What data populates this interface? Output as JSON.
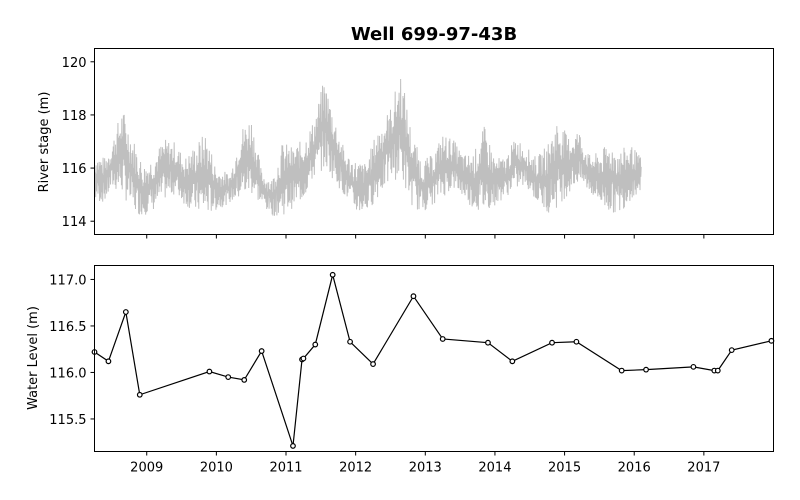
{
  "chart_data": [
    {
      "type": "line",
      "title": "Well 699-97-43B",
      "xlabel": "",
      "ylabel": "River stage (m)",
      "ylim": [
        113.5,
        120.5
      ],
      "xlim": [
        2008.25,
        2018.0
      ],
      "yticks": [
        114,
        116,
        118,
        120
      ],
      "grid": false,
      "color": "#bfbfbf",
      "series": [
        {
          "x": [
            2008.25,
            2008.4,
            2008.5,
            2008.65,
            2008.8,
            2008.95,
            2009.1,
            2009.25,
            2009.4,
            2009.55,
            2009.7,
            2009.85,
            2010.0,
            2010.2,
            2010.35,
            2010.5,
            2010.65,
            2010.8,
            2010.95,
            2011.1,
            2011.25,
            2011.4,
            2011.55,
            2011.7,
            2011.85,
            2012.0,
            2012.15,
            2012.3,
            2012.5,
            2012.65,
            2012.8,
            2012.95,
            2013.1,
            2013.25,
            2013.4,
            2013.55,
            2013.7,
            2013.85,
            2014.0,
            2014.15,
            2014.3,
            2014.45,
            2014.6,
            2014.75,
            2014.9,
            2015.05,
            2015.2,
            2015.35,
            2015.5,
            2015.65,
            2015.8,
            2015.95,
            2016.1
          ],
          "low": [
            114.7,
            114.7,
            115.2,
            115.0,
            114.3,
            114.2,
            114.4,
            114.8,
            115.0,
            114.6,
            114.3,
            114.2,
            114.4,
            114.7,
            114.8,
            115.0,
            114.6,
            114.2,
            114.2,
            114.5,
            114.8,
            115.6,
            116.0,
            115.5,
            114.9,
            114.3,
            114.3,
            114.8,
            115.5,
            115.6,
            114.6,
            114.3,
            114.6,
            114.9,
            115.2,
            114.9,
            114.4,
            114.3,
            114.6,
            114.9,
            115.2,
            115.3,
            114.7,
            114.3,
            114.5,
            115.0,
            115.4,
            115.1,
            114.6,
            114.3,
            114.3,
            114.8,
            115.1
          ],
          "high": [
            116.6,
            116.4,
            117.0,
            118.3,
            117.2,
            116.1,
            116.5,
            117.1,
            117.0,
            116.4,
            116.9,
            117.4,
            116.0,
            115.8,
            117.5,
            118.0,
            115.9,
            115.6,
            117.0,
            116.8,
            117.1,
            117.8,
            119.4,
            117.9,
            116.6,
            116.3,
            116.2,
            117.4,
            118.3,
            119.7,
            117.4,
            116.3,
            116.5,
            117.3,
            117.1,
            116.5,
            116.6,
            117.6,
            116.4,
            116.4,
            117.2,
            116.8,
            116.4,
            116.9,
            117.9,
            117.2,
            117.5,
            116.5,
            116.6,
            117.0,
            116.7,
            116.9,
            116.4
          ]
        }
      ]
    },
    {
      "type": "line",
      "xlabel": "",
      "ylabel": "Water Level (m)",
      "ylim": [
        115.15,
        117.15
      ],
      "xlim": [
        2008.25,
        2018.0
      ],
      "yticks": [
        115.5,
        116.0,
        116.5,
        117.0
      ],
      "ytick_labels": [
        "115.5",
        "116.0",
        "116.5",
        "117.0"
      ],
      "xticks": [
        2009,
        2010,
        2011,
        2012,
        2013,
        2014,
        2015,
        2016,
        2017
      ],
      "xtick_labels": [
        "2009",
        "2010",
        "2011",
        "2012",
        "2013",
        "2014",
        "2015",
        "2016",
        "2017"
      ],
      "grid": false,
      "color": "#000000",
      "series": [
        {
          "x": [
            2008.25,
            2008.45,
            2008.7,
            2008.9,
            2009.9,
            2010.17,
            2010.4,
            2010.65,
            2011.1,
            2011.23,
            2011.25,
            2011.42,
            2011.67,
            2011.92,
            2012.25,
            2012.83,
            2013.25,
            2013.9,
            2014.25,
            2014.82,
            2015.17,
            2015.82,
            2016.17,
            2016.85,
            2017.15,
            2017.2,
            2017.4,
            2017.97
          ],
          "y": [
            116.22,
            116.12,
            116.65,
            115.76,
            116.01,
            115.95,
            115.92,
            116.23,
            115.21,
            116.14,
            116.15,
            116.3,
            117.05,
            116.33,
            116.09,
            116.82,
            116.36,
            116.32,
            116.12,
            116.32,
            116.33,
            116.02,
            116.03,
            116.06,
            116.02,
            116.02,
            116.24,
            116.34
          ]
        }
      ]
    }
  ]
}
